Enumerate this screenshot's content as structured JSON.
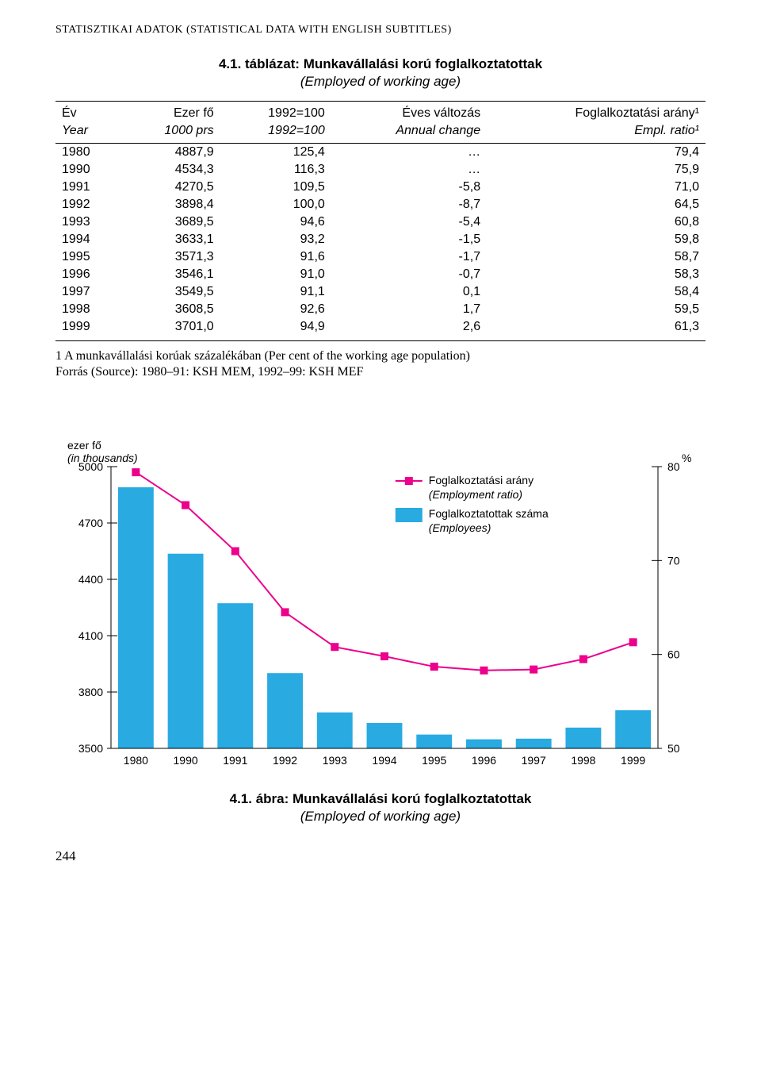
{
  "page_header": "STATISZTIKAI ADATOK (STATISTICAL DATA WITH ENGLISH SUBTITLES)",
  "table": {
    "title": "4.1. táblázat: Munkavállalási korú foglalkoztatottak",
    "subtitle": "(Employed of working age)",
    "head_top": [
      "Év",
      "Ezer fő",
      "1992=100",
      "Éves változás",
      "Foglalkoztatási arány¹"
    ],
    "head_bottom": [
      "Year",
      "1000 prs",
      "1992=100",
      "Annual change",
      "Empl. ratio¹"
    ],
    "rows": [
      [
        "1980",
        "4887,9",
        "125,4",
        "…",
        "79,4"
      ],
      [
        "1990",
        "4534,3",
        "116,3",
        "…",
        "75,9"
      ],
      [
        "1991",
        "4270,5",
        "109,5",
        "-5,8",
        "71,0"
      ],
      [
        "1992",
        "3898,4",
        "100,0",
        "-8,7",
        "64,5"
      ],
      [
        "1993",
        "3689,5",
        "94,6",
        "-5,4",
        "60,8"
      ],
      [
        "1994",
        "3633,1",
        "93,2",
        "-1,5",
        "59,8"
      ],
      [
        "1995",
        "3571,3",
        "91,6",
        "-1,7",
        "58,7"
      ],
      [
        "1996",
        "3546,1",
        "91,0",
        "-0,7",
        "58,3"
      ],
      [
        "1997",
        "3549,5",
        "91,1",
        "0,1",
        "58,4"
      ],
      [
        "1998",
        "3608,5",
        "92,6",
        "1,7",
        "59,5"
      ],
      [
        "1999",
        "3701,0",
        "94,9",
        "2,6",
        "61,3"
      ]
    ]
  },
  "footnote": "1 A munkavállalási korúak százalékában (Per cent of the working age population)",
  "source": "Forrás (Source): 1980–91: KSH MEM, 1992–99: KSH MEF",
  "chart": {
    "type": "bar+line",
    "y_left_label": "ezer fő",
    "y_left_sublabel": "(in thousands)",
    "y_right_label": "%",
    "x_categories": [
      "1980",
      "1990",
      "1991",
      "1992",
      "1993",
      "1994",
      "1995",
      "1996",
      "1997",
      "1998",
      "1999"
    ],
    "bars": [
      4887.9,
      4534.3,
      4270.5,
      3898.4,
      3689.5,
      3633.1,
      3571.3,
      3546.1,
      3549.5,
      3608.5,
      3701.0
    ],
    "line": [
      79.4,
      75.9,
      71.0,
      64.5,
      60.8,
      59.8,
      58.7,
      58.3,
      58.4,
      59.5,
      61.3
    ],
    "y_left_lim": [
      3500,
      5000
    ],
    "y_left_ticks": [
      3500,
      3800,
      4100,
      4400,
      4700,
      5000
    ],
    "y_right_lim": [
      50,
      80
    ],
    "y_right_ticks": [
      50,
      60,
      70,
      80
    ],
    "bar_color": "#29abe2",
    "line_color": "#ec008c",
    "marker_fill": "#ec008c",
    "axis_color": "#000000",
    "bg_color": "#ffffff",
    "bar_width": 0.7,
    "legend": {
      "line_label": "Foglalkoztatási arány",
      "line_sublabel": "(Employment ratio)",
      "bar_label": "Foglalkoztatottak száma",
      "bar_sublabel": "(Employees)"
    }
  },
  "chart_title": "4.1. ábra: Munkavállalási korú foglalkoztatottak",
  "chart_subtitle": "(Employed of working age)",
  "page_number": "244"
}
